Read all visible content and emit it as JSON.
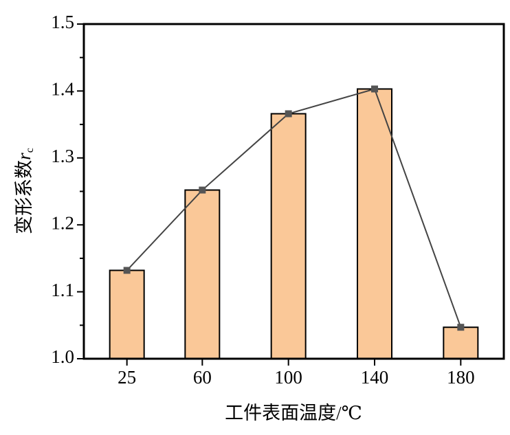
{
  "chart_data": {
    "type": "bar",
    "line_overlay": true,
    "ylabel": "变形系数",
    "ylabel_symbol": "r",
    "ylabel_subscript": "c",
    "xlabel": "工件表面温度/℃",
    "x": [
      25,
      60,
      100,
      140,
      180
    ],
    "values": [
      1.132,
      1.252,
      1.366,
      1.403,
      1.047
    ],
    "color": "#fac898",
    "line_color": "#444444",
    "xlim": [
      5,
      200
    ],
    "xticks": [
      25,
      60,
      100,
      140,
      180
    ],
    "ylim": [
      1.0,
      1.5
    ],
    "yticks": [
      {
        "value": 1.0,
        "label": "1.0"
      },
      1.1,
      1.2,
      1.3,
      1.4,
      1.5
    ],
    "yminorticks": [
      1.05,
      1.15,
      1.25,
      1.35,
      1.45
    ]
  }
}
